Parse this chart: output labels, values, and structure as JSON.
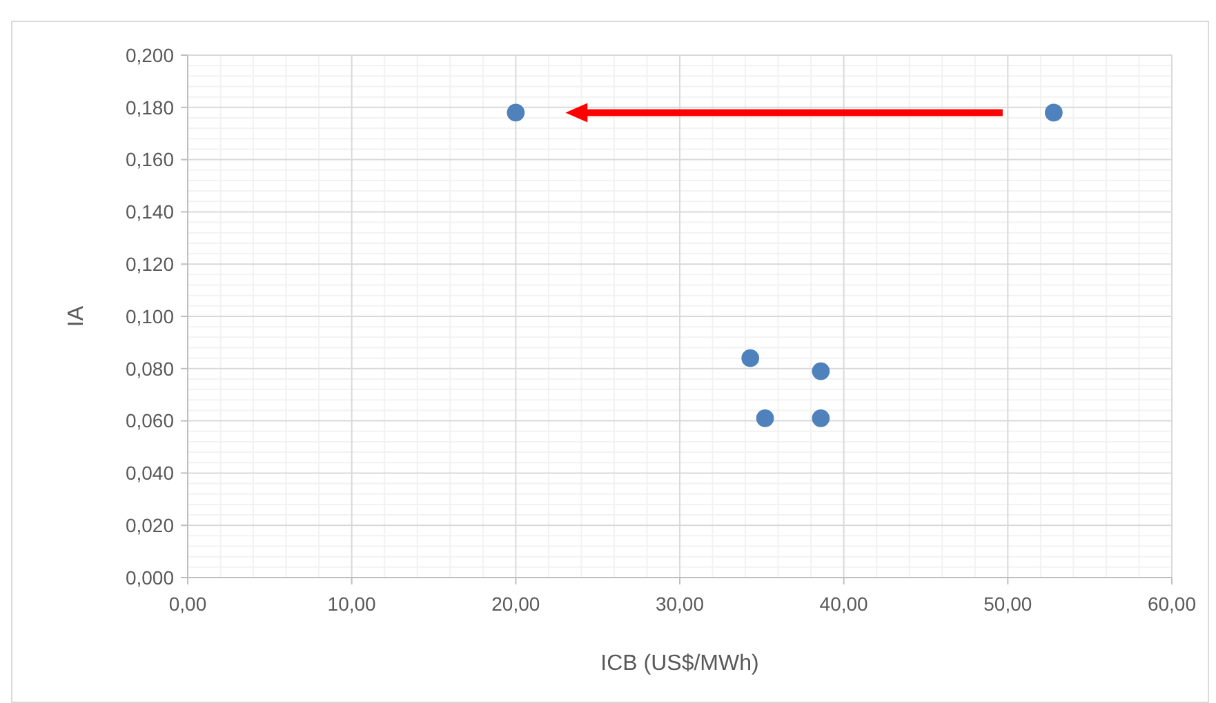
{
  "chart_data": {
    "type": "scatter",
    "xlabel": "ICB (US$/MWh)",
    "ylabel": "IA",
    "x": [
      20.0,
      52.8,
      34.3,
      38.6,
      35.2,
      38.6
    ],
    "series": [
      {
        "color": "#4f81bd",
        "values": [
          0.178,
          0.178,
          0.084,
          0.079,
          0.061,
          0.061
        ]
      }
    ],
    "xlim": [
      0,
      60
    ],
    "ylim": [
      0,
      0.2
    ],
    "xticks": [
      {
        "value": 0,
        "label": "0,00"
      },
      {
        "value": 10,
        "label": "10,00"
      },
      {
        "value": 20,
        "label": "20,00"
      },
      {
        "value": 30,
        "label": "30,00"
      },
      {
        "value": 40,
        "label": "40,00"
      },
      {
        "value": 50,
        "label": "50,00"
      },
      {
        "value": 60,
        "label": "60,00"
      }
    ],
    "yticks": [
      {
        "value": 0,
        "label": "0,000"
      },
      {
        "value": 0.02,
        "label": "0,020"
      },
      {
        "value": 0.04,
        "label": "0,040"
      },
      {
        "value": 0.06,
        "label": "0,060"
      },
      {
        "value": 0.08,
        "label": "0,080"
      },
      {
        "value": 0.1,
        "label": "0,100"
      },
      {
        "value": 0.12,
        "label": "0,120"
      },
      {
        "value": 0.14,
        "label": "0,140"
      },
      {
        "value": 0.16,
        "label": "0,160"
      },
      {
        "value": 0.18,
        "label": "0,180"
      },
      {
        "value": 0.2,
        "label": "0,200"
      }
    ],
    "grid": true,
    "marker": "circle"
  }
}
